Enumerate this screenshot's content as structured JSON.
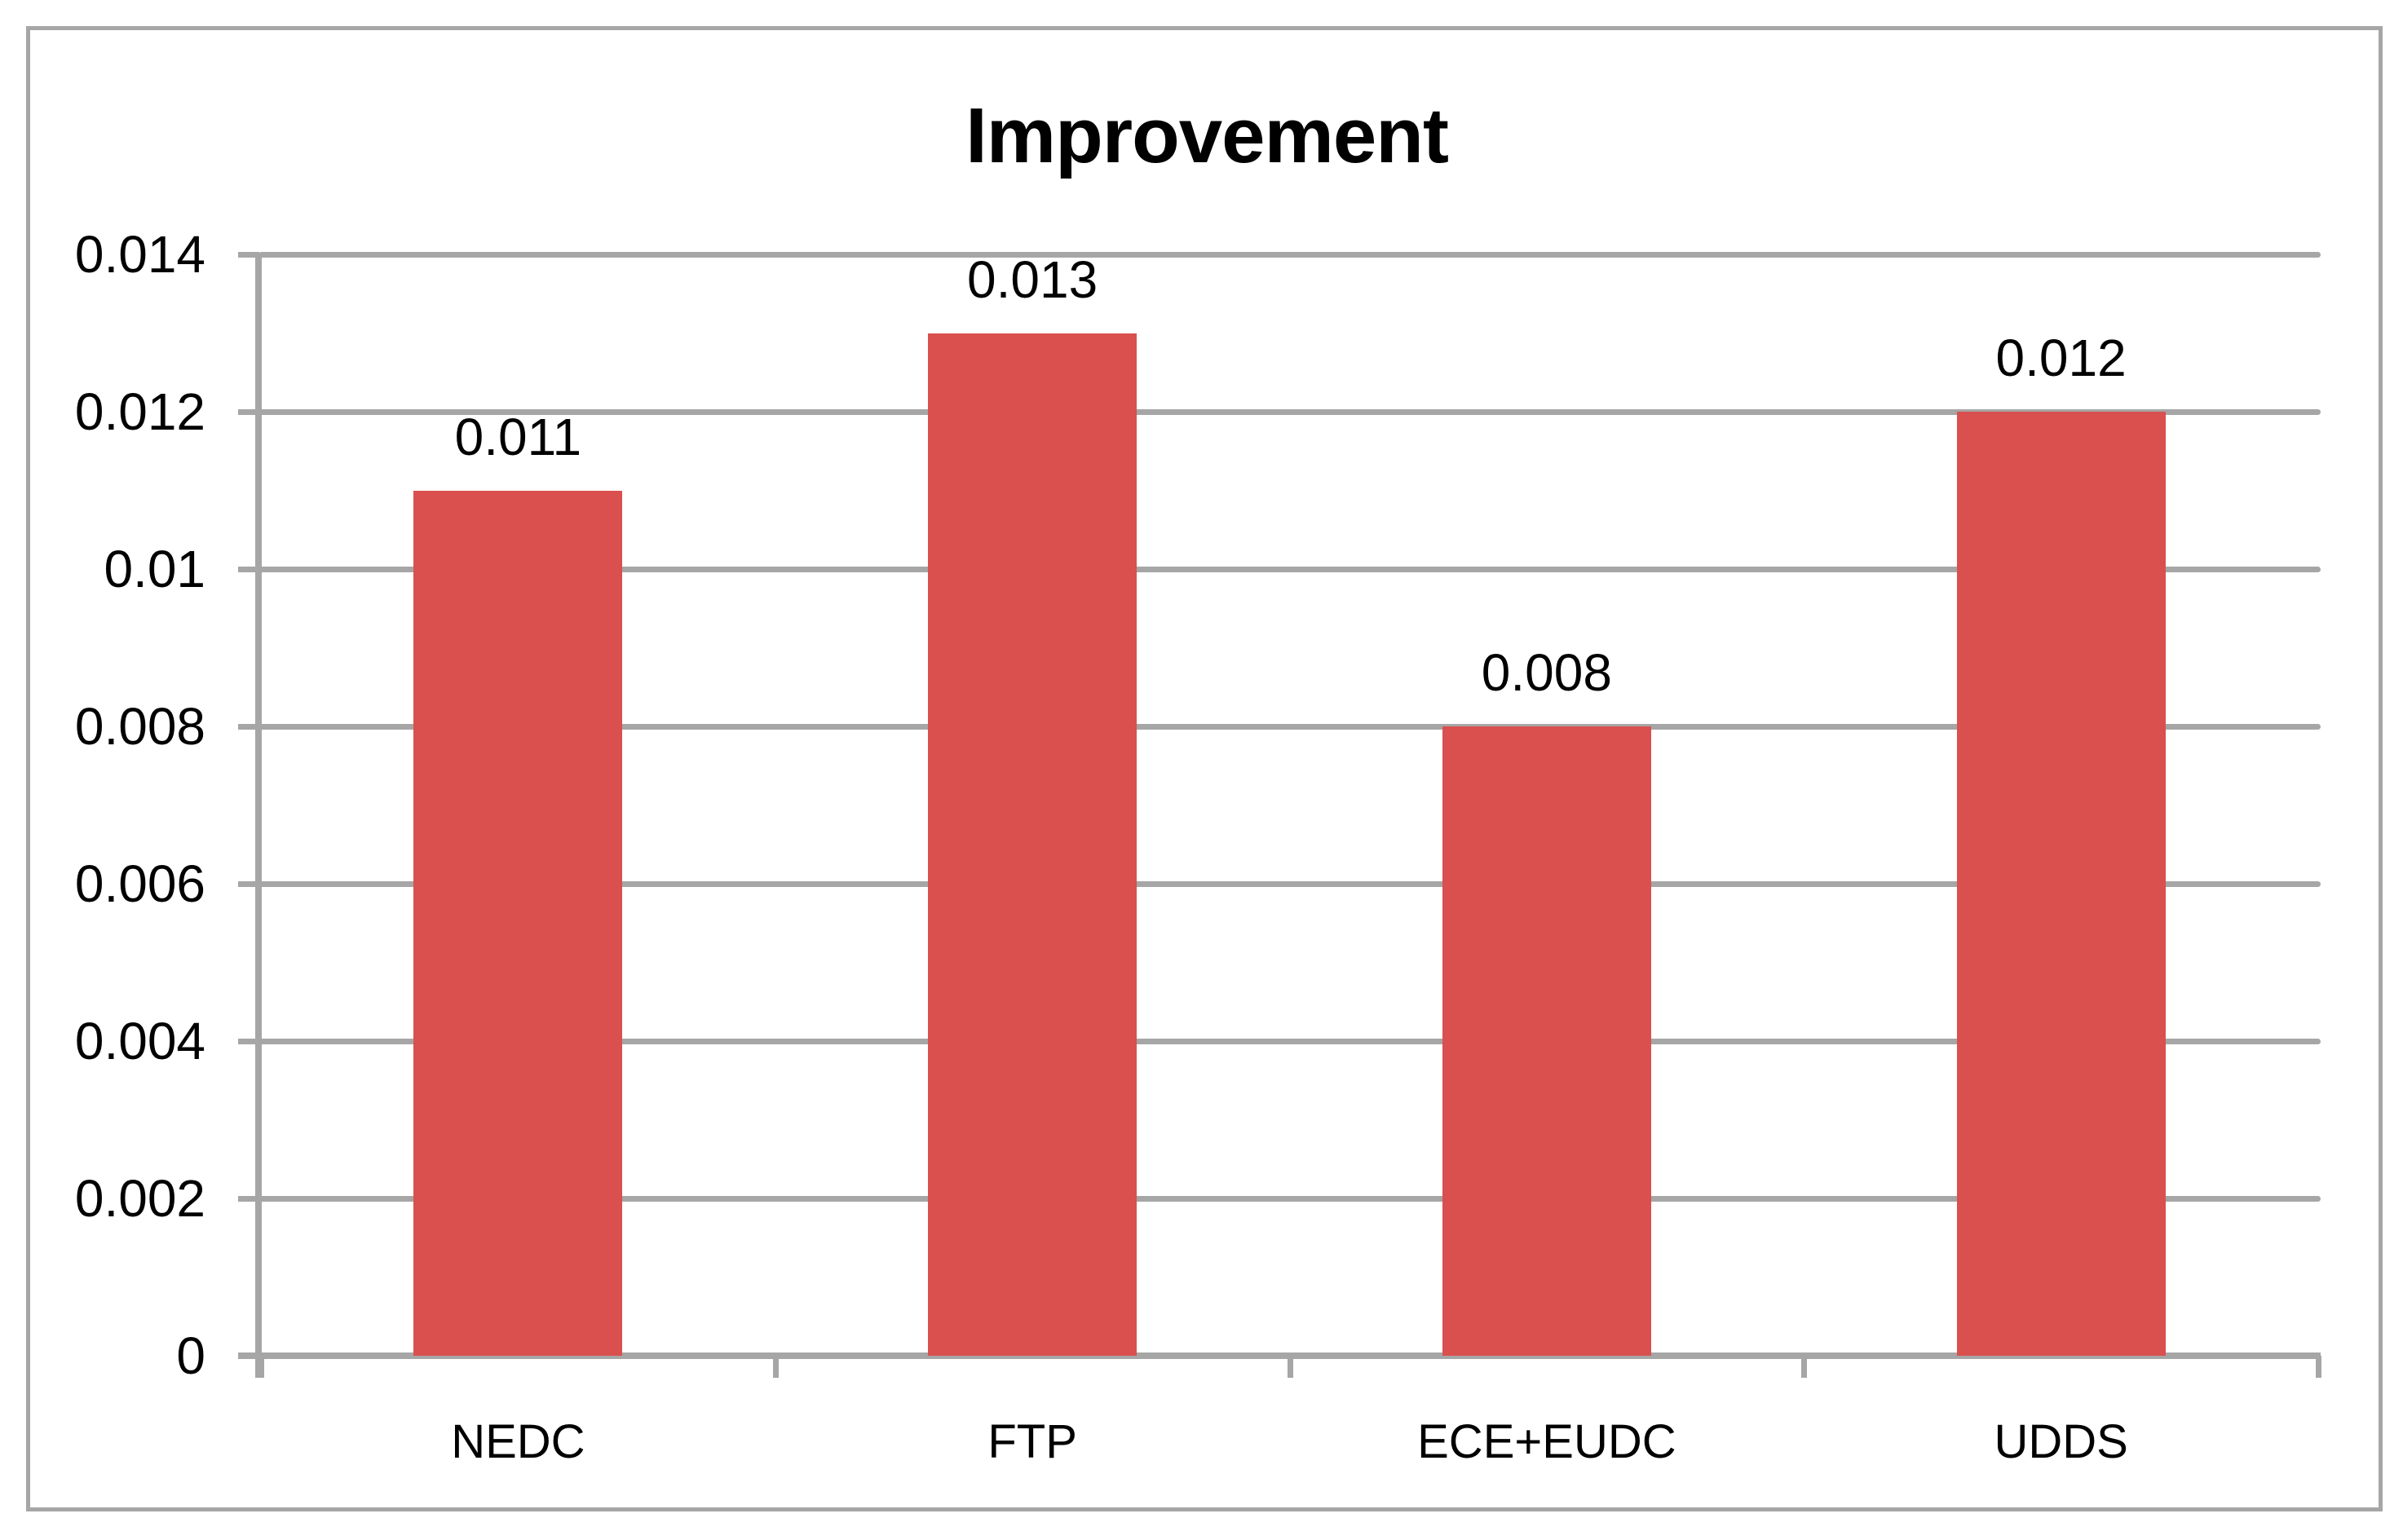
{
  "chart_data": {
    "type": "bar",
    "title": "Improvement",
    "categories": [
      "NEDC",
      "FTP",
      "ECE+EUDC",
      "UDDS"
    ],
    "values": [
      0.011,
      0.013,
      0.008,
      0.012
    ],
    "data_labels": [
      "0.011",
      "0.013",
      "0.008",
      "0.012"
    ],
    "y_tick_labels": [
      "0",
      "0.002",
      "0.004",
      "0.006",
      "0.008",
      "0.01",
      "0.012",
      "0.014"
    ],
    "y_tick_values": [
      0,
      0.002,
      0.004,
      0.006,
      0.008,
      0.01,
      0.012,
      0.014
    ],
    "ylim": [
      0,
      0.014
    ],
    "xlabel": "",
    "ylabel": "",
    "grid": true,
    "legend": false,
    "colors": {
      "bar": "#d9504e",
      "grid": "#a6a6a6",
      "axis": "#a6a6a6",
      "border": "#a6a6a6",
      "text": "#000000",
      "background": "#ffffff"
    }
  }
}
